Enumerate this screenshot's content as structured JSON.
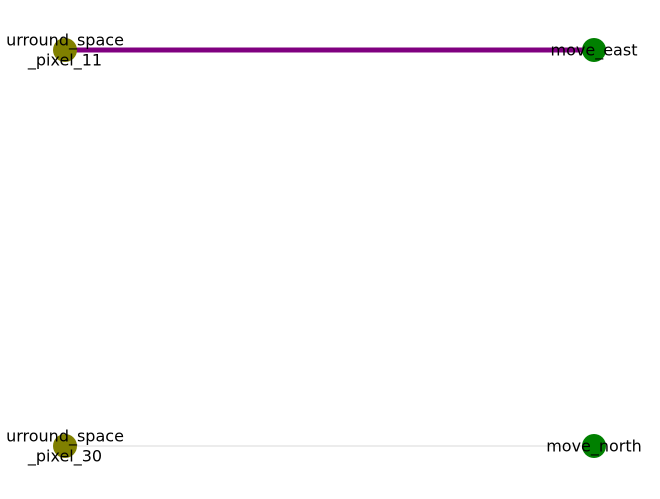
{
  "graph": {
    "nodes": [
      {
        "id": "surround_space_pixel_11",
        "label_lines": [
          "urround_space",
          "_pixel_11"
        ],
        "color": "#808000"
      },
      {
        "id": "move_east",
        "label_lines": [
          "move_east"
        ],
        "color": "#008000"
      },
      {
        "id": "surround_space_pixel_30",
        "label_lines": [
          "urround_space",
          "_pixel_30"
        ],
        "color": "#808000"
      },
      {
        "id": "move_north",
        "label_lines": [
          "move_north"
        ],
        "color": "#008000"
      }
    ],
    "edges": [
      {
        "source": "surround_space_pixel_11",
        "target": "move_east",
        "color": "#800080",
        "weight": "strong"
      },
      {
        "source": "surround_space_pixel_30",
        "target": "move_north",
        "color": "#e6e6e6",
        "weight": "weak"
      }
    ]
  }
}
